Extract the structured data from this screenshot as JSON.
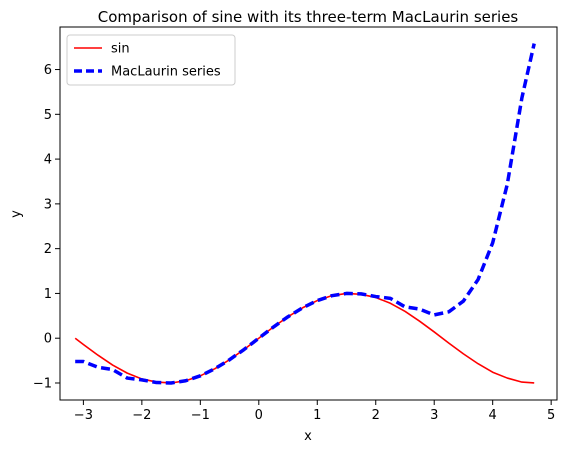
{
  "chart_data": {
    "type": "line",
    "title": "Comparison of sine with its three-term MacLaurin series",
    "xlabel": "x",
    "ylabel": "y",
    "xlim": [
      -3.4,
      5.1
    ],
    "ylim": [
      -1.38,
      6.95
    ],
    "x_ticks": [
      -3,
      -2,
      -1,
      0,
      1,
      2,
      3,
      4,
      5
    ],
    "x_tick_labels": [
      "−3",
      "−2",
      "−1",
      "0",
      "1",
      "2",
      "3",
      "4",
      "5"
    ],
    "y_ticks": [
      -1,
      0,
      1,
      2,
      3,
      4,
      5,
      6
    ],
    "y_tick_labels": [
      "−1",
      "0",
      "1",
      "2",
      "3",
      "4",
      "5",
      "6"
    ],
    "grid": false,
    "legend_position": "top-left",
    "series": [
      {
        "name": "sin",
        "color": "#ff0000",
        "style": "solid",
        "x": [
          -3.14,
          -3.0,
          -2.75,
          -2.5,
          -2.25,
          -2.0,
          -1.75,
          -1.5,
          -1.25,
          -1.0,
          -0.75,
          -0.5,
          -0.25,
          0.0,
          0.25,
          0.5,
          0.75,
          1.0,
          1.25,
          1.5,
          1.75,
          2.0,
          2.25,
          2.5,
          2.75,
          3.0,
          3.25,
          3.5,
          3.75,
          4.0,
          4.25,
          4.5,
          4.71
        ],
        "y": [
          0.0,
          -0.14,
          -0.38,
          -0.6,
          -0.78,
          -0.91,
          -0.98,
          -1.0,
          -0.95,
          -0.84,
          -0.68,
          -0.48,
          -0.25,
          0.0,
          0.25,
          0.48,
          0.68,
          0.84,
          0.95,
          1.0,
          0.98,
          0.91,
          0.78,
          0.6,
          0.38,
          0.14,
          -0.11,
          -0.35,
          -0.57,
          -0.76,
          -0.89,
          -0.98,
          -1.0
        ]
      },
      {
        "name": "MacLaurin series",
        "color": "#0000ff",
        "style": "dashed",
        "x": [
          -3.14,
          -3.0,
          -2.75,
          -2.5,
          -2.25,
          -2.0,
          -1.75,
          -1.5,
          -1.25,
          -1.0,
          -0.75,
          -0.5,
          -0.25,
          0.0,
          0.25,
          0.5,
          0.75,
          1.0,
          1.25,
          1.5,
          1.75,
          2.0,
          2.25,
          2.5,
          2.75,
          3.0,
          3.25,
          3.5,
          3.75,
          4.0,
          4.25,
          4.5,
          4.71
        ],
        "y": [
          -0.52,
          -0.52,
          -0.65,
          -0.7,
          -0.89,
          -0.93,
          -0.99,
          -1.0,
          -0.95,
          -0.84,
          -0.68,
          -0.48,
          -0.25,
          0.0,
          0.25,
          0.48,
          0.68,
          0.84,
          0.95,
          1.0,
          0.99,
          0.93,
          0.89,
          0.7,
          0.65,
          0.52,
          0.59,
          0.83,
          1.31,
          2.13,
          3.44,
          5.37,
          6.58
        ]
      }
    ]
  }
}
